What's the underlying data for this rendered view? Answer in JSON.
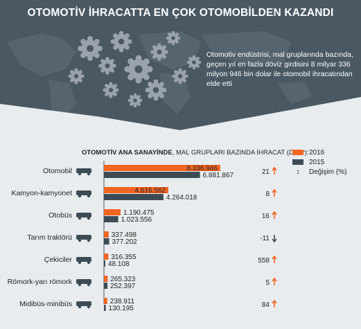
{
  "title": "OTOMOTİV İHRACATTA EN ÇOK OTOMOBİLDEN KAZANDI",
  "intro": "Otomotiv endüstrisi, mal gruplarında bazında, geçen yıl en fazla döviz girdisini 8 milyar 336 milyon 946 bin dolar ile otomobil ihracatından elde etti",
  "chart_title": {
    "bold": "OTOMOTİV ANA SANAYİNDE",
    "normal": ", MAL GRUPLARI BAZINDA İHRACAT (",
    "unit": "Dolar",
    "end": "):"
  },
  "colors": {
    "y2016": "#f26522",
    "y2015": "#3d4b55",
    "header": "#4a5863",
    "gear": "#9aa3ab"
  },
  "legend": {
    "y2016": "2016",
    "y2015": "2015",
    "change": "Değişim (%)",
    "change_symbol": "↕"
  },
  "chart_data": {
    "type": "bar",
    "orientation": "horizontal",
    "categories": [
      "Otomobil",
      "Kamyon-kamyonet",
      "Otobüs",
      "Tarım traktörü",
      "Çekiciler",
      "Römork-yarı römork",
      "Midibüs-minibüs"
    ],
    "series": [
      {
        "name": "2016",
        "values": [
          8336946,
          4616562,
          1190475,
          337498,
          316355,
          265323,
          238911
        ],
        "labels": [
          "8.336.946",
          "4.616.562",
          "1.190.475",
          "337.498",
          "316.355",
          "265.323",
          "238.911"
        ]
      },
      {
        "name": "2015",
        "values": [
          6881867,
          4264018,
          1023556,
          377202,
          48108,
          252397,
          130195
        ],
        "labels": [
          "6.881.867",
          "4.264.018",
          "1.023.556",
          "377.202",
          "48.108",
          "252.397",
          "130.195"
        ]
      }
    ],
    "change": {
      "name": "Değişim (%)",
      "values": [
        21,
        8,
        16,
        -11,
        558,
        5,
        84
      ],
      "labels": [
        "21",
        "8",
        "16",
        "-11",
        "558",
        "5",
        "84"
      ]
    },
    "icons": [
      "car-icon",
      "truck-icon",
      "bus-icon",
      "tractor-icon",
      "tow-truck-icon",
      "trailer-icon",
      "minibus-icon"
    ],
    "xlim": [
      0,
      9000000
    ]
  }
}
